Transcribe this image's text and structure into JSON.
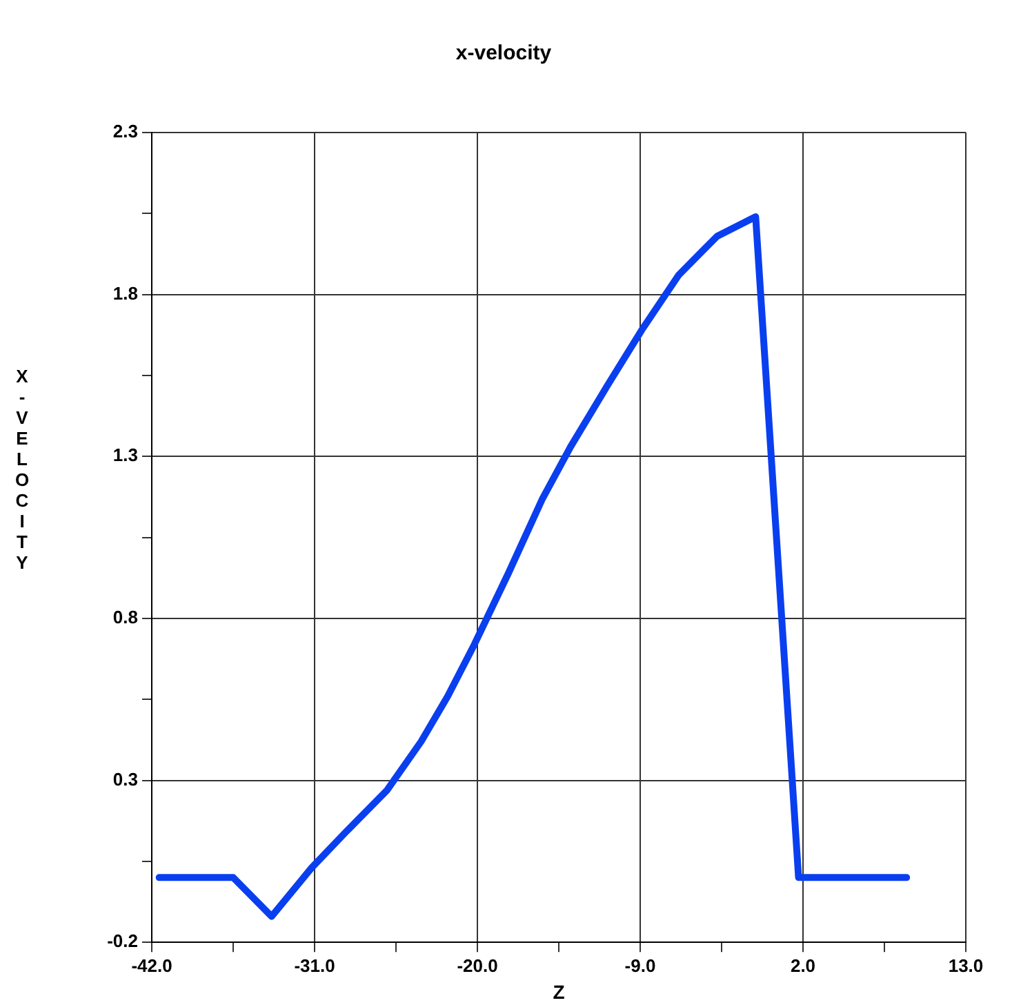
{
  "chart_data": {
    "type": "line",
    "title": "x-velocity",
    "xlabel": "Z",
    "ylabel": "X-VELOCITY",
    "x": [
      -41.5,
      -36.5,
      -33.9,
      -31.2,
      -28.9,
      -26.1,
      -23.8,
      -22.0,
      -20.2,
      -17.9,
      -15.6,
      -13.7,
      -11.2,
      -8.9,
      -6.4,
      -3.8,
      -1.2,
      1.7,
      9.0
    ],
    "series": [
      {
        "color": "#0a3ff0",
        "values": [
          0.0,
          0.0,
          -0.12,
          0.03,
          0.14,
          0.27,
          0.42,
          0.56,
          0.72,
          0.94,
          1.17,
          1.33,
          1.52,
          1.69,
          1.86,
          1.98,
          2.04,
          0.0,
          0.0
        ]
      }
    ],
    "xlim": [
      -42,
      13
    ],
    "xticks": [
      {
        "value": -42,
        "label": "-42.0"
      },
      {
        "value": -36.5,
        "label": null
      },
      {
        "value": -31,
        "label": "-31.0"
      },
      {
        "value": -25.5,
        "label": null
      },
      {
        "value": -20,
        "label": "-20.0"
      },
      {
        "value": -14.5,
        "label": null
      },
      {
        "value": -9,
        "label": "-9.0"
      },
      {
        "value": -3.5,
        "label": null
      },
      {
        "value": 2,
        "label": "2.0"
      },
      {
        "value": 7.5,
        "label": null
      },
      {
        "value": 13,
        "label": "13.0"
      }
    ],
    "ylim": [
      -0.2,
      2.3
    ],
    "yticks": [
      -0.2,
      {
        "value": 0.05,
        "label": null
      },
      0.3,
      {
        "value": 0.55,
        "label": null
      },
      0.8,
      {
        "value": 1.05,
        "label": null
      },
      1.3,
      {
        "value": 1.55,
        "label": null
      },
      1.8,
      {
        "value": 2.05,
        "label": null
      },
      2.3
    ],
    "grid": true,
    "legend": false,
    "marker": "none",
    "line_style": "solid"
  }
}
